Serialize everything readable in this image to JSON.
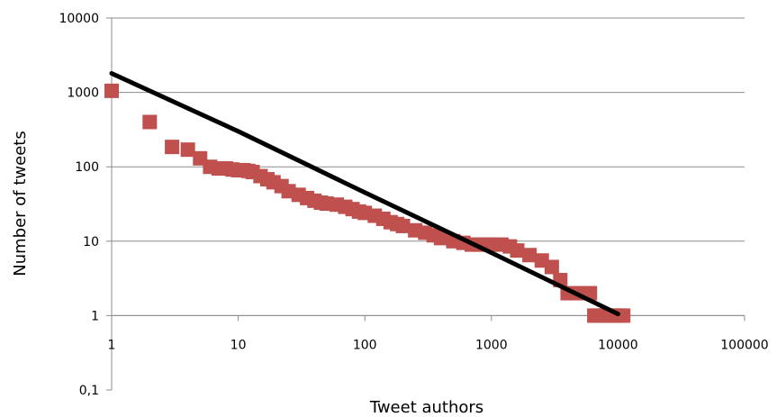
{
  "chart_data": {
    "type": "scatter",
    "xlabel": "Tweet authors",
    "ylabel": "Number of tweets",
    "x_scale": "log",
    "y_scale": "log",
    "xlim": [
      1,
      100000
    ],
    "ylim": [
      0.1,
      10000
    ],
    "x_ticks": [
      "1",
      "10",
      "100",
      "1000",
      "10000",
      "100000"
    ],
    "y_ticks": [
      "0,1",
      "1",
      "10",
      "100",
      "1000",
      "10000"
    ],
    "grid": "horizontal",
    "legend": "none",
    "colors": {
      "points": "#c0504d",
      "trendline": "#000000",
      "grid": "#8c8c8c"
    },
    "series": [
      {
        "points": [
          [
            1,
            1050
          ],
          [
            2,
            400
          ],
          [
            3,
            185
          ],
          [
            4,
            170
          ],
          [
            5,
            130
          ],
          [
            6,
            100
          ],
          [
            7,
            95
          ],
          [
            8,
            95
          ],
          [
            9,
            92
          ],
          [
            10,
            90
          ],
          [
            11,
            90
          ],
          [
            12,
            88
          ],
          [
            13,
            85
          ],
          [
            15,
            75
          ],
          [
            17,
            68
          ],
          [
            19,
            62
          ],
          [
            22,
            55
          ],
          [
            25,
            47
          ],
          [
            30,
            42
          ],
          [
            35,
            38
          ],
          [
            40,
            35
          ],
          [
            45,
            33
          ],
          [
            50,
            32
          ],
          [
            60,
            31
          ],
          [
            70,
            29
          ],
          [
            80,
            27
          ],
          [
            90,
            25
          ],
          [
            100,
            24
          ],
          [
            120,
            22
          ],
          [
            140,
            20
          ],
          [
            160,
            18
          ],
          [
            180,
            17
          ],
          [
            200,
            16
          ],
          [
            250,
            14
          ],
          [
            300,
            13
          ],
          [
            350,
            12
          ],
          [
            400,
            11
          ],
          [
            500,
            10
          ],
          [
            600,
            9.5
          ],
          [
            700,
            9
          ],
          [
            800,
            9
          ],
          [
            900,
            9
          ],
          [
            1000,
            9
          ],
          [
            1200,
            9
          ],
          [
            1400,
            8.5
          ],
          [
            1600,
            7.5
          ],
          [
            2000,
            6.5
          ],
          [
            2500,
            5.5
          ],
          [
            3000,
            4.5
          ],
          [
            3500,
            3
          ],
          [
            4000,
            2
          ],
          [
            5000,
            2
          ],
          [
            6000,
            2
          ],
          [
            6500,
            1
          ],
          [
            7000,
            1
          ],
          [
            8000,
            1
          ],
          [
            9000,
            1
          ],
          [
            10000,
            1
          ],
          [
            11000,
            1
          ]
        ]
      }
    ],
    "trendline": {
      "points": [
        [
          1,
          1800
        ],
        [
          10,
          300
        ],
        [
          100,
          45
        ],
        [
          1000,
          7
        ],
        [
          10000,
          1.05
        ]
      ]
    }
  }
}
